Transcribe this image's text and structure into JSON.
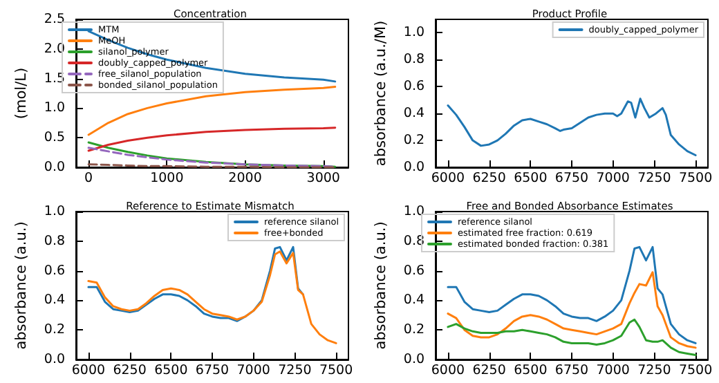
{
  "chart_data": [
    {
      "type": "line",
      "title": "Concentration",
      "ylabel": "(mol/L)",
      "x": [
        0,
        250,
        500,
        750,
        1000,
        1500,
        2000,
        2500,
        3000,
        3150
      ],
      "series": [
        {
          "name": "MTM",
          "color": "#1f77b4",
          "values": [
            2.3,
            2.15,
            2.02,
            1.91,
            1.82,
            1.68,
            1.58,
            1.52,
            1.48,
            1.45
          ]
        },
        {
          "name": "MeOH",
          "color": "#ff7f0e",
          "values": [
            0.55,
            0.75,
            0.9,
            1.0,
            1.08,
            1.2,
            1.27,
            1.31,
            1.34,
            1.36
          ]
        },
        {
          "name": "silanol_polymer",
          "color": "#2ca02c",
          "values": [
            0.42,
            0.33,
            0.26,
            0.2,
            0.15,
            0.09,
            0.05,
            0.03,
            0.02,
            0.01
          ]
        },
        {
          "name": "doubly_capped_polymer",
          "color": "#d62728",
          "values": [
            0.28,
            0.38,
            0.45,
            0.5,
            0.54,
            0.6,
            0.63,
            0.65,
            0.66,
            0.67
          ]
        },
        {
          "name": "free_silanol_population",
          "color": "#9467bd",
          "line_style": "dashed",
          "values": [
            0.33,
            0.27,
            0.21,
            0.17,
            0.13,
            0.08,
            0.05,
            0.03,
            0.02,
            0.01
          ]
        },
        {
          "name": "bonded_silanol_population",
          "color": "#8c564b",
          "line_style": "dashed",
          "values": [
            0.05,
            0.04,
            0.03,
            0.02,
            0.02,
            0.01,
            0.01,
            0,
            0,
            0
          ]
        }
      ],
      "xlim": [
        -160,
        3320
      ],
      "xticks": [
        0,
        1000,
        2000,
        3000
      ],
      "ylim": [
        0,
        2.5
      ],
      "yticks": [
        {
          "value": 0,
          "label": "0.0"
        },
        0.5,
        {
          "value": 1,
          "label": "1.0"
        },
        1.5,
        {
          "value": 2,
          "label": "2.0"
        },
        2.5
      ],
      "legend": "top left"
    },
    {
      "type": "line",
      "title": "Product Profile",
      "ylabel": "absorbance (a.u./M)",
      "x": [
        6000,
        6050,
        6100,
        6150,
        6200,
        6250,
        6300,
        6350,
        6400,
        6450,
        6500,
        6550,
        6600,
        6650,
        6680,
        6700,
        6750,
        6800,
        6850,
        6900,
        6950,
        7000,
        7025,
        7050,
        7090,
        7110,
        7135,
        7165,
        7190,
        7220,
        7260,
        7300,
        7320,
        7350,
        7400,
        7450,
        7500
      ],
      "series": [
        {
          "name": "doubly_capped_polymer",
          "color": "#1f77b4",
          "values": [
            0.46,
            0.39,
            0.3,
            0.2,
            0.16,
            0.17,
            0.2,
            0.25,
            0.31,
            0.35,
            0.36,
            0.34,
            0.32,
            0.29,
            0.27,
            0.28,
            0.29,
            0.33,
            0.37,
            0.39,
            0.4,
            0.4,
            0.38,
            0.4,
            0.49,
            0.48,
            0.37,
            0.51,
            0.44,
            0.37,
            0.4,
            0.44,
            0.39,
            0.24,
            0.17,
            0.12,
            0.09
          ]
        }
      ],
      "xlim": [
        5925,
        7575
      ],
      "xticks": [
        6000,
        6250,
        6500,
        6750,
        7000,
        7250,
        7500
      ],
      "ylim": [
        0,
        1.1
      ],
      "yticks": [
        {
          "value": 0,
          "label": "0.0"
        },
        0.2,
        0.4,
        0.6,
        0.8,
        {
          "value": 1,
          "label": "1.0"
        }
      ],
      "legend": "top right"
    },
    {
      "type": "line",
      "title": "Reference to Estimate Mismatch",
      "ylabel": "absorbance (a.u.)",
      "x": [
        6000,
        6050,
        6100,
        6150,
        6200,
        6250,
        6300,
        6350,
        6400,
        6450,
        6500,
        6550,
        6600,
        6650,
        6700,
        6750,
        6800,
        6850,
        6900,
        6950,
        7000,
        7050,
        7100,
        7130,
        7160,
        7200,
        7240,
        7270,
        7300,
        7350,
        7400,
        7450,
        7500
      ],
      "series": [
        {
          "name": "reference silanol",
          "color": "#1f77b4",
          "values": [
            0.49,
            0.49,
            0.39,
            0.34,
            0.33,
            0.32,
            0.33,
            0.37,
            0.41,
            0.44,
            0.44,
            0.43,
            0.4,
            0.36,
            0.31,
            0.29,
            0.28,
            0.28,
            0.26,
            0.29,
            0.33,
            0.4,
            0.6,
            0.75,
            0.76,
            0.67,
            0.76,
            0.48,
            0.44,
            null,
            null,
            null,
            null
          ]
        },
        {
          "name": "free+bonded",
          "color": "#ff7f0e",
          "values": [
            0.53,
            0.52,
            0.42,
            0.36,
            0.34,
            0.33,
            0.34,
            0.38,
            0.43,
            0.47,
            0.48,
            0.47,
            0.44,
            0.39,
            0.34,
            0.31,
            0.3,
            0.29,
            0.27,
            0.29,
            0.33,
            0.39,
            0.57,
            0.71,
            0.73,
            0.65,
            0.72,
            0.47,
            0.44,
            0.24,
            0.17,
            0.13,
            0.11
          ]
        }
      ],
      "xlim": [
        5925,
        7575
      ],
      "xticks": [
        6000,
        6250,
        6500,
        6750,
        7000,
        7250,
        7500
      ],
      "ylim": [
        0,
        1
      ],
      "yticks": [
        {
          "value": 0,
          "label": "0.0"
        },
        0.2,
        0.4,
        0.6,
        0.8,
        {
          "value": 1,
          "label": "1.0"
        }
      ],
      "legend": "top right"
    },
    {
      "type": "line",
      "title": "Free and Bonded Absorbance Estimates",
      "ylabel": "absorbance (a.u.)",
      "x": [
        6000,
        6050,
        6100,
        6150,
        6200,
        6250,
        6300,
        6350,
        6400,
        6450,
        6500,
        6550,
        6600,
        6650,
        6700,
        6750,
        6800,
        6850,
        6900,
        6950,
        7000,
        7050,
        7100,
        7130,
        7160,
        7200,
        7240,
        7270,
        7300,
        7350,
        7400,
        7450,
        7500
      ],
      "series": [
        {
          "name": "reference silanol",
          "color": "#1f77b4",
          "values": [
            0.49,
            0.49,
            0.39,
            0.34,
            0.33,
            0.32,
            0.33,
            0.37,
            0.41,
            0.44,
            0.44,
            0.43,
            0.4,
            0.36,
            0.31,
            0.29,
            0.28,
            0.28,
            0.26,
            0.29,
            0.33,
            0.4,
            0.6,
            0.75,
            0.76,
            0.67,
            0.76,
            0.48,
            0.44,
            0.24,
            0.17,
            0.13,
            0.11
          ]
        },
        {
          "name": "estimated free fraction: 0.619",
          "color": "#ff7f0e",
          "values": [
            0.31,
            0.28,
            0.2,
            0.16,
            0.15,
            0.15,
            0.17,
            0.21,
            0.26,
            0.29,
            0.3,
            0.29,
            0.27,
            0.24,
            0.21,
            0.2,
            0.19,
            0.18,
            0.17,
            0.19,
            0.21,
            0.24,
            0.38,
            0.45,
            0.51,
            0.5,
            0.59,
            0.36,
            0.3,
            0.15,
            0.11,
            0.09,
            0.08
          ]
        },
        {
          "name": "estimated bonded fraction: 0.381",
          "color": "#2ca02c",
          "values": [
            0.22,
            0.24,
            0.21,
            0.19,
            0.18,
            0.18,
            0.18,
            0.19,
            0.19,
            0.2,
            0.19,
            0.18,
            0.17,
            0.15,
            0.12,
            0.11,
            0.11,
            0.11,
            0.1,
            0.11,
            0.13,
            0.16,
            0.25,
            0.27,
            0.22,
            0.13,
            0.12,
            0.12,
            0.13,
            0.08,
            0.05,
            0.04,
            0.03
          ]
        }
      ],
      "xlim": [
        5925,
        7575
      ],
      "xticks": [
        6000,
        6250,
        6500,
        6750,
        7000,
        7250,
        7500
      ],
      "ylim": [
        0,
        1
      ],
      "yticks": [
        {
          "value": 0,
          "label": "0.0"
        },
        0.2,
        0.4,
        0.6,
        0.8,
        {
          "value": 1,
          "label": "1.0"
        }
      ],
      "legend": "top left"
    }
  ]
}
